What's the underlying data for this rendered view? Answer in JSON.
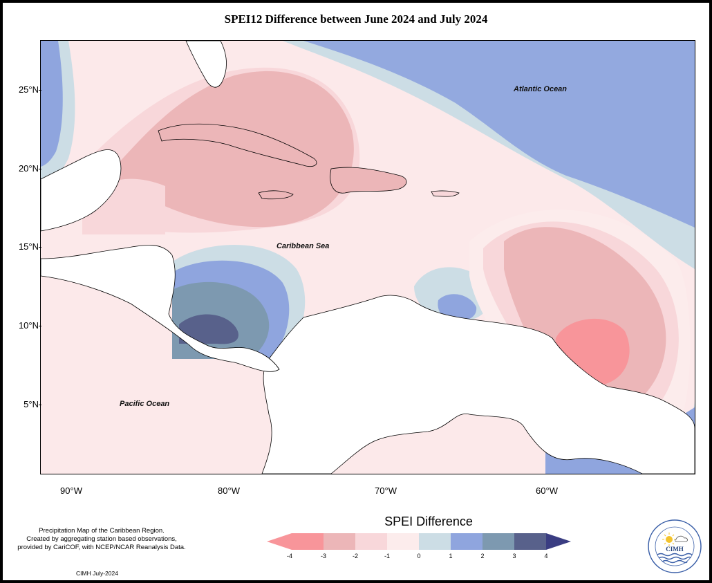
{
  "title": "SPEI12 Difference between June 2024 and July 2024",
  "axes": {
    "lat_labels": [
      "25°N",
      "20°N",
      "15°N",
      "10°N",
      "5°N"
    ],
    "lon_labels": [
      "90°W",
      "80°W",
      "70°W",
      "60°W"
    ]
  },
  "labels": {
    "atlantic": "Atlantic Ocean",
    "caribbean": "Caribbean Sea",
    "pacific": "Pacific Ocean"
  },
  "legend": {
    "title": "SPEI Difference",
    "ticks": [
      "-4",
      "-3",
      "-2",
      "-1",
      "0",
      "1",
      "2",
      "3",
      "4"
    ],
    "colors": [
      "#f8959a",
      "#ecb6b8",
      "#f8d7da",
      "#fcecec",
      "#ccdde5",
      "#8fa5de",
      "#7d99b0",
      "#58618b",
      "#3a3d82"
    ]
  },
  "credit": {
    "line1": "Precipitation Map of the Caribbean Region.",
    "line2": "Created by aggregating station based observations,",
    "line3": "provided by CariCOF, with NCEP/NCAR Reanalysis Data.",
    "date": "CIMH July-2024"
  },
  "logo": {
    "text": "CIMH",
    "ring_text": "Caribbean Institute for Meteorology and Hydrology"
  }
}
